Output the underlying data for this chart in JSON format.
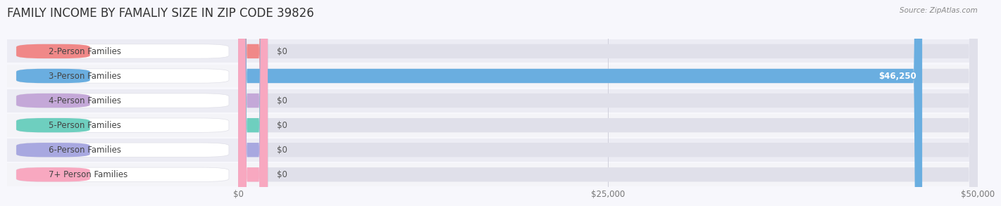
{
  "title": "FAMILY INCOME BY FAMALIY SIZE IN ZIP CODE 39826",
  "source": "Source: ZipAtlas.com",
  "categories": [
    "2-Person Families",
    "3-Person Families",
    "4-Person Families",
    "5-Person Families",
    "6-Person Families",
    "7+ Person Families"
  ],
  "values": [
    0,
    46250,
    0,
    0,
    0,
    0
  ],
  "bar_colors": [
    "#f08888",
    "#6aaee0",
    "#c4a8d8",
    "#6ecfbf",
    "#a8a8e0",
    "#f8a8c0"
  ],
  "row_bg_colors": [
    "#ececf4",
    "#f4f4f8"
  ],
  "xlim": [
    0,
    50000
  ],
  "xticks": [
    0,
    25000,
    50000
  ],
  "xtick_labels": [
    "$0",
    "$25,000",
    "$50,000"
  ],
  "value_labels": [
    "$0",
    "$46,250",
    "$0",
    "$0",
    "$0",
    "$0"
  ],
  "bar_height": 0.58,
  "background_color": "#f7f7fc",
  "title_fontsize": 12,
  "label_fontsize": 8.5,
  "tick_fontsize": 8.5,
  "track_color": "#e0e0ea",
  "label_pill_color": "#ffffff",
  "label_pill_edge": "#e0e0e8"
}
